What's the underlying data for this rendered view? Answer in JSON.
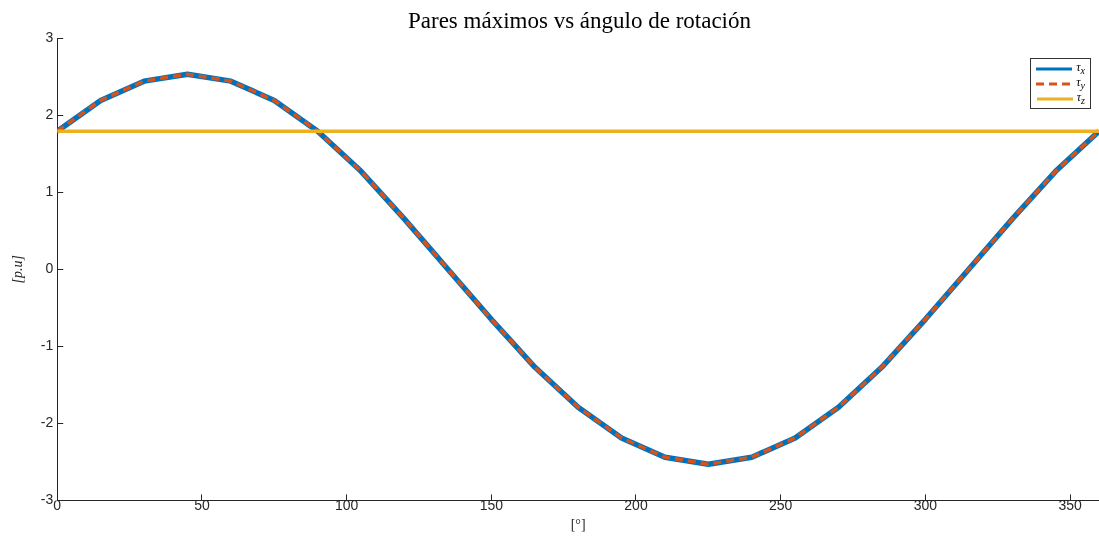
{
  "chart_data": {
    "type": "line",
    "title": "Pares máximos vs ángulo de rotación",
    "xlabel": "[°]",
    "ylabel": "[p.u]",
    "x": [
      0,
      15,
      30,
      45,
      60,
      75,
      90,
      105,
      120,
      135,
      150,
      165,
      180,
      195,
      210,
      225,
      240,
      255,
      270,
      285,
      300,
      315,
      330,
      345,
      360
    ],
    "series": [
      {
        "name": "τ$_{x}$",
        "color": "#0072bd",
        "line_style": "solid",
        "values": [
          1.79,
          2.19,
          2.44,
          2.53,
          2.44,
          2.19,
          1.79,
          1.27,
          0.65,
          0,
          -0.65,
          -1.27,
          -1.79,
          -2.19,
          -2.44,
          -2.53,
          -2.44,
          -2.19,
          -1.79,
          -1.27,
          -0.65,
          0,
          0.65,
          1.27,
          1.79
        ]
      },
      {
        "name": "τ$_{y}$",
        "color": "#d95319",
        "line_style": "dashed",
        "values": [
          1.79,
          2.19,
          2.44,
          2.53,
          2.44,
          2.19,
          1.79,
          1.27,
          0.65,
          0,
          -0.65,
          -1.27,
          -1.79,
          -2.19,
          -2.44,
          -2.53,
          -2.44,
          -2.19,
          -1.79,
          -1.27,
          -0.65,
          0,
          0.65,
          1.27,
          1.79
        ]
      },
      {
        "name": "τ$_{z}$",
        "color": "#edb120",
        "line_style": "solid",
        "values": [
          1.79,
          1.79,
          1.79,
          1.79,
          1.79,
          1.79,
          1.79,
          1.79,
          1.79,
          1.79,
          1.79,
          1.79,
          1.79,
          1.79,
          1.79,
          1.79,
          1.79,
          1.79,
          1.79,
          1.79,
          1.79,
          1.79,
          1.79,
          1.79,
          1.79
        ]
      }
    ],
    "xlim": [
      0,
      360
    ],
    "xticks": [
      0,
      50,
      100,
      150,
      200,
      250,
      300,
      350
    ],
    "ylim": [
      -3,
      3
    ],
    "yticks": [
      -3,
      -2,
      -1,
      0,
      1,
      2,
      3
    ],
    "grid": false,
    "legend": "top right",
    "marker": "none"
  }
}
